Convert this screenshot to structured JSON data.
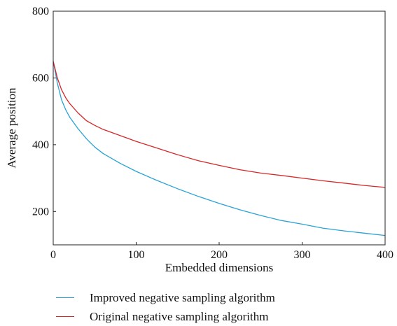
{
  "chart_data": {
    "type": "line",
    "xlabel": "Embedded dimensions",
    "ylabel": "Average position",
    "xlim": [
      0,
      400
    ],
    "ylim": [
      100,
      800
    ],
    "xticks": [
      0,
      100,
      200,
      300,
      400
    ],
    "yticks": [
      200,
      400,
      600,
      800
    ],
    "grid": false,
    "legend_position": "bottom",
    "series": [
      {
        "name": "Improved negative sampling algorithm",
        "color": "#29a3d6",
        "x": [
          0,
          5,
          10,
          15,
          20,
          30,
          40,
          50,
          60,
          80,
          100,
          125,
          150,
          175,
          200,
          225,
          250,
          275,
          300,
          325,
          350,
          375,
          400
        ],
        "y": [
          650,
          585,
          535,
          505,
          482,
          448,
          418,
          393,
          374,
          345,
          320,
          293,
          268,
          245,
          224,
          205,
          188,
          173,
          162,
          150,
          142,
          135,
          128
        ]
      },
      {
        "name": "Original negative sampling algorithm",
        "color": "#d62728",
        "x": [
          0,
          5,
          10,
          15,
          20,
          30,
          40,
          50,
          60,
          80,
          100,
          125,
          150,
          175,
          200,
          225,
          250,
          275,
          300,
          325,
          350,
          375,
          400
        ],
        "y": [
          650,
          600,
          565,
          541,
          523,
          495,
          472,
          458,
          446,
          428,
          410,
          390,
          370,
          352,
          338,
          325,
          315,
          308,
          300,
          292,
          285,
          278,
          272
        ]
      }
    ]
  }
}
